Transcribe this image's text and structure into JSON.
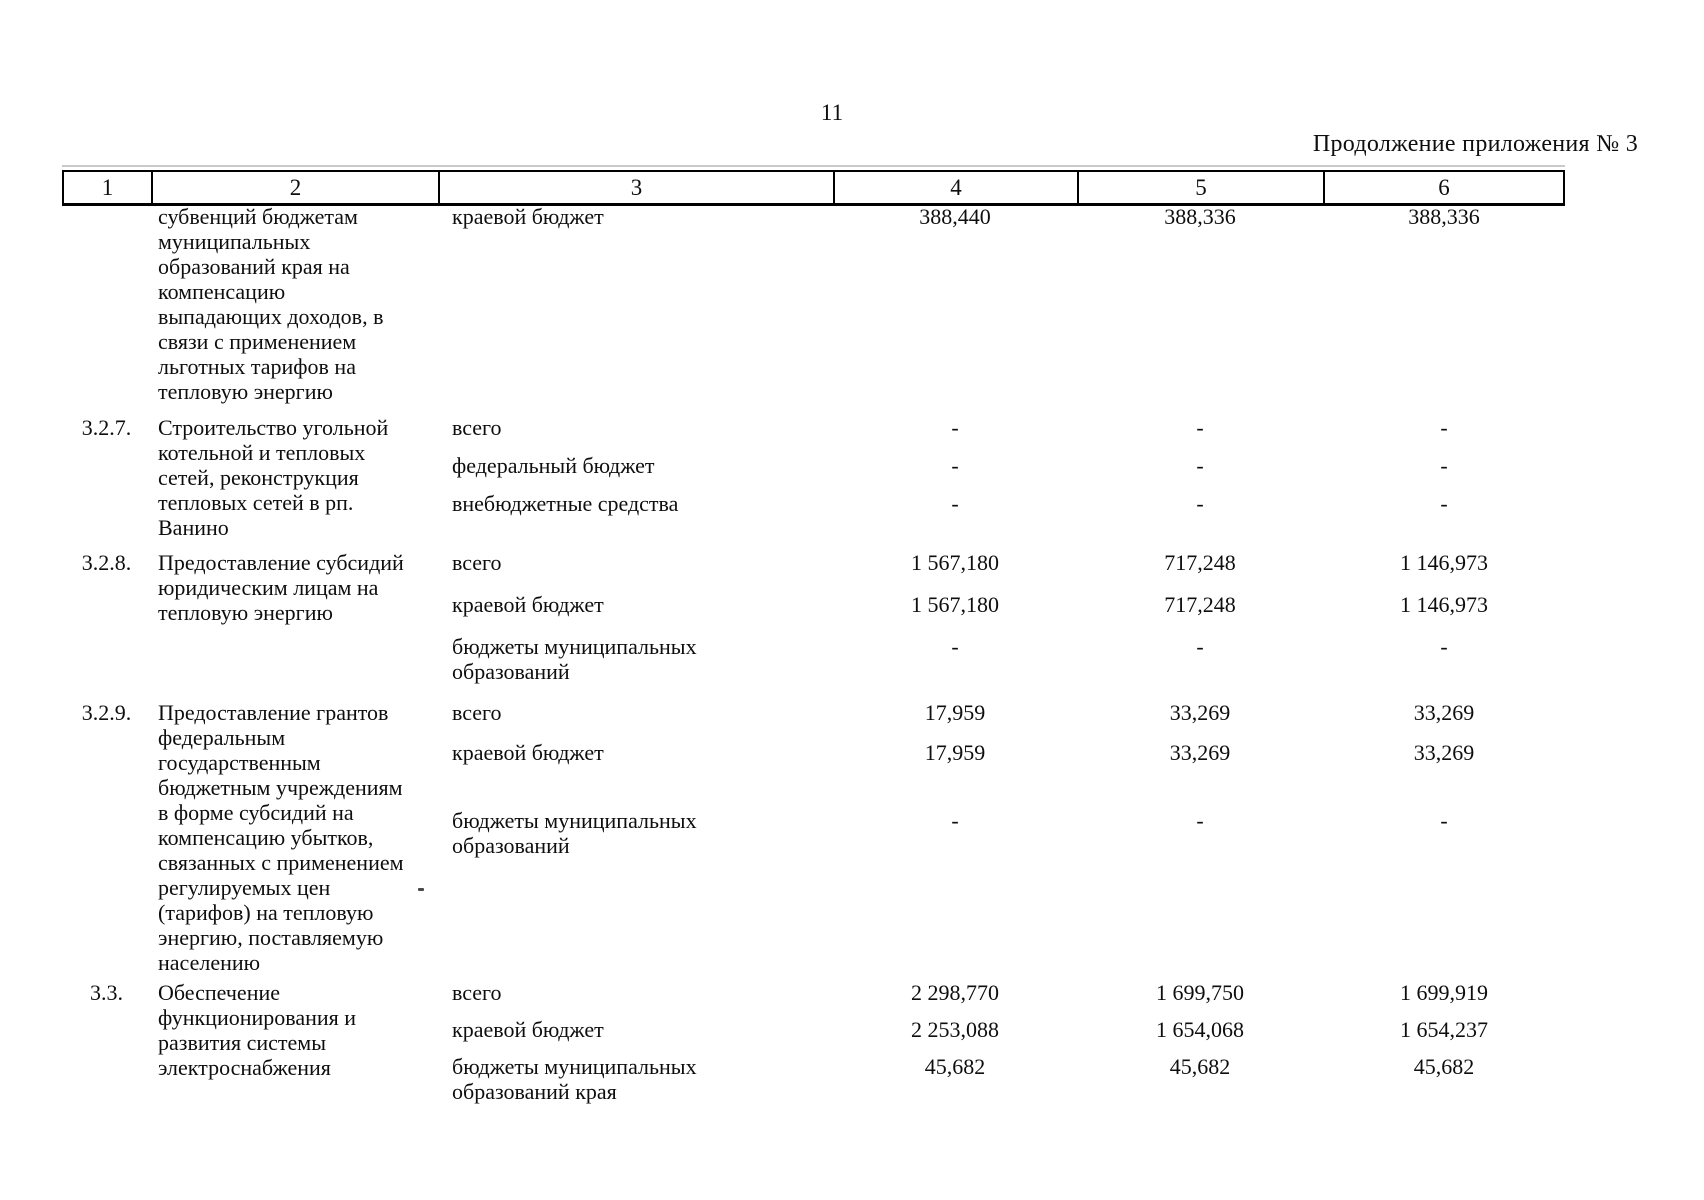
{
  "page": {
    "number": "11",
    "continuation_label": "Продолжение приложения № 3"
  },
  "table": {
    "header_cols": [
      "1",
      "2",
      "3",
      "4",
      "5",
      "6"
    ],
    "sections": [
      {
        "num": "",
        "name": "субвенций бюджетам\nмуниципальных\nобразований края на\nкомпенсацию\nвыпадающих доходов, в\nсвязи с применением\nльготных тарифов на\nтепловую энергию",
        "subrows": [
          {
            "label": "краевой бюджет",
            "v4": "388,440",
            "v5": "388,336",
            "v6": "388,336"
          }
        ]
      },
      {
        "num": "3.2.7.",
        "name": "Строительство угольной\nкотельной и тепловых\nсетей, реконструкция\nтепловых сетей в рп.\nВанино",
        "subrows": [
          {
            "label": "всего",
            "v4": "-",
            "v5": "-",
            "v6": "-"
          },
          {
            "label": "федеральный бюджет",
            "v4": "-",
            "v5": "-",
            "v6": "-"
          },
          {
            "label": "внебюджетные средства",
            "v4": "-",
            "v5": "-",
            "v6": "-"
          }
        ]
      },
      {
        "num": "3.2.8.",
        "name": "Предоставление субсидий\nюридическим лицам на\nтепловую энергию",
        "subrows": [
          {
            "label": "всего",
            "v4": "1 567,180",
            "v5": "717,248",
            "v6": "1 146,973"
          },
          {
            "label": "краевой бюджет",
            "v4": "1 567,180",
            "v5": "717,248",
            "v6": "1 146,973"
          },
          {
            "label": "бюджеты муниципальных\nобразований",
            "v4": "-",
            "v5": "-",
            "v6": "-"
          }
        ]
      },
      {
        "num": "3.2.9.",
        "name": "Предоставление грантов\nфедеральным\nгосударственным\nбюджетным учреждениям\nв форме субсидий на\nкомпенсацию убытков,\nсвязанных с применением\nрегулируемых цен\n(тарифов) на тепловую\nэнергию, поставляемую\nнаселению",
        "subrows": [
          {
            "label": "всего",
            "v4": "17,959",
            "v5": "33,269",
            "v6": "33,269"
          },
          {
            "label": "краевой бюджет",
            "v4": "17,959",
            "v5": "33,269",
            "v6": "33,269"
          },
          {
            "label": "бюджеты муниципальных\nобразований",
            "v4": "-",
            "v5": "-",
            "v6": "-"
          }
        ]
      },
      {
        "num": "3.3.",
        "name": "Обеспечение\nфункционирования и\nразвития системы\nэлектроснабжения",
        "subrows": [
          {
            "label": "всего",
            "v4": "2 298,770",
            "v5": "1 699,750",
            "v6": "1 699,919"
          },
          {
            "label": "краевой бюджет",
            "v4": "2 253,088",
            "v5": "1 654,068",
            "v6": "1 654,237"
          },
          {
            "label": "бюджеты муниципальных\nобразований края",
            "v4": "45,682",
            "v5": "45,682",
            "v6": "45,682"
          }
        ]
      }
    ]
  }
}
